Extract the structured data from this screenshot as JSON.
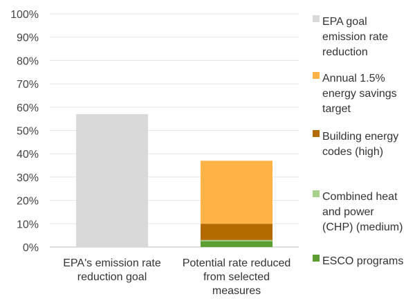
{
  "chart_data": {
    "type": "bar",
    "stacked": true,
    "categories": [
      "EPA's emission rate reduction goal",
      "Potential rate reduced from selected measures"
    ],
    "category_label_lines": [
      [
        "EPA's emission rate",
        "reduction goal"
      ],
      [
        "Potential rate reduced",
        "from selected",
        "measures"
      ]
    ],
    "series": [
      {
        "name": "EPA goal emission rate reduction",
        "color": "#d9d9d9",
        "values": [
          57,
          0
        ]
      },
      {
        "name": "ESCO programs",
        "color": "#5c9e32",
        "values": [
          0,
          2.5
        ]
      },
      {
        "name": "Combined heat and power (CHP) (medium)",
        "color": "#a9d18e",
        "values": [
          0,
          0.5
        ]
      },
      {
        "name": "Building energy codes (high)",
        "color": "#b36b00",
        "values": [
          0,
          7
        ]
      },
      {
        "name": "Annual 1.5% energy savings target",
        "color": "#ffb347",
        "values": [
          0,
          27
        ]
      }
    ],
    "legend": {
      "placement": "right",
      "items": [
        {
          "lines": [
            "EPA goal",
            "emission rate",
            "reduction"
          ],
          "color": "#d9d9d9"
        },
        {
          "lines": [
            "Annual 1.5%",
            "energy savings",
            "target"
          ],
          "color": "#ffb347"
        },
        {
          "lines": [
            "Building energy",
            "codes (high)"
          ],
          "color": "#b36b00"
        },
        {
          "lines": [
            "Combined heat",
            "and power",
            "(CHP) (medium)"
          ],
          "color": "#a9d18e"
        },
        {
          "lines": [
            "ESCO programs"
          ],
          "color": "#5c9e32"
        }
      ]
    },
    "yticks": [
      "0%",
      "10%",
      "20%",
      "30%",
      "40%",
      "50%",
      "60%",
      "70%",
      "80%",
      "90%",
      "100%"
    ],
    "ylim": [
      0,
      100
    ],
    "grid": true,
    "title": "",
    "xlabel": "",
    "ylabel": ""
  }
}
